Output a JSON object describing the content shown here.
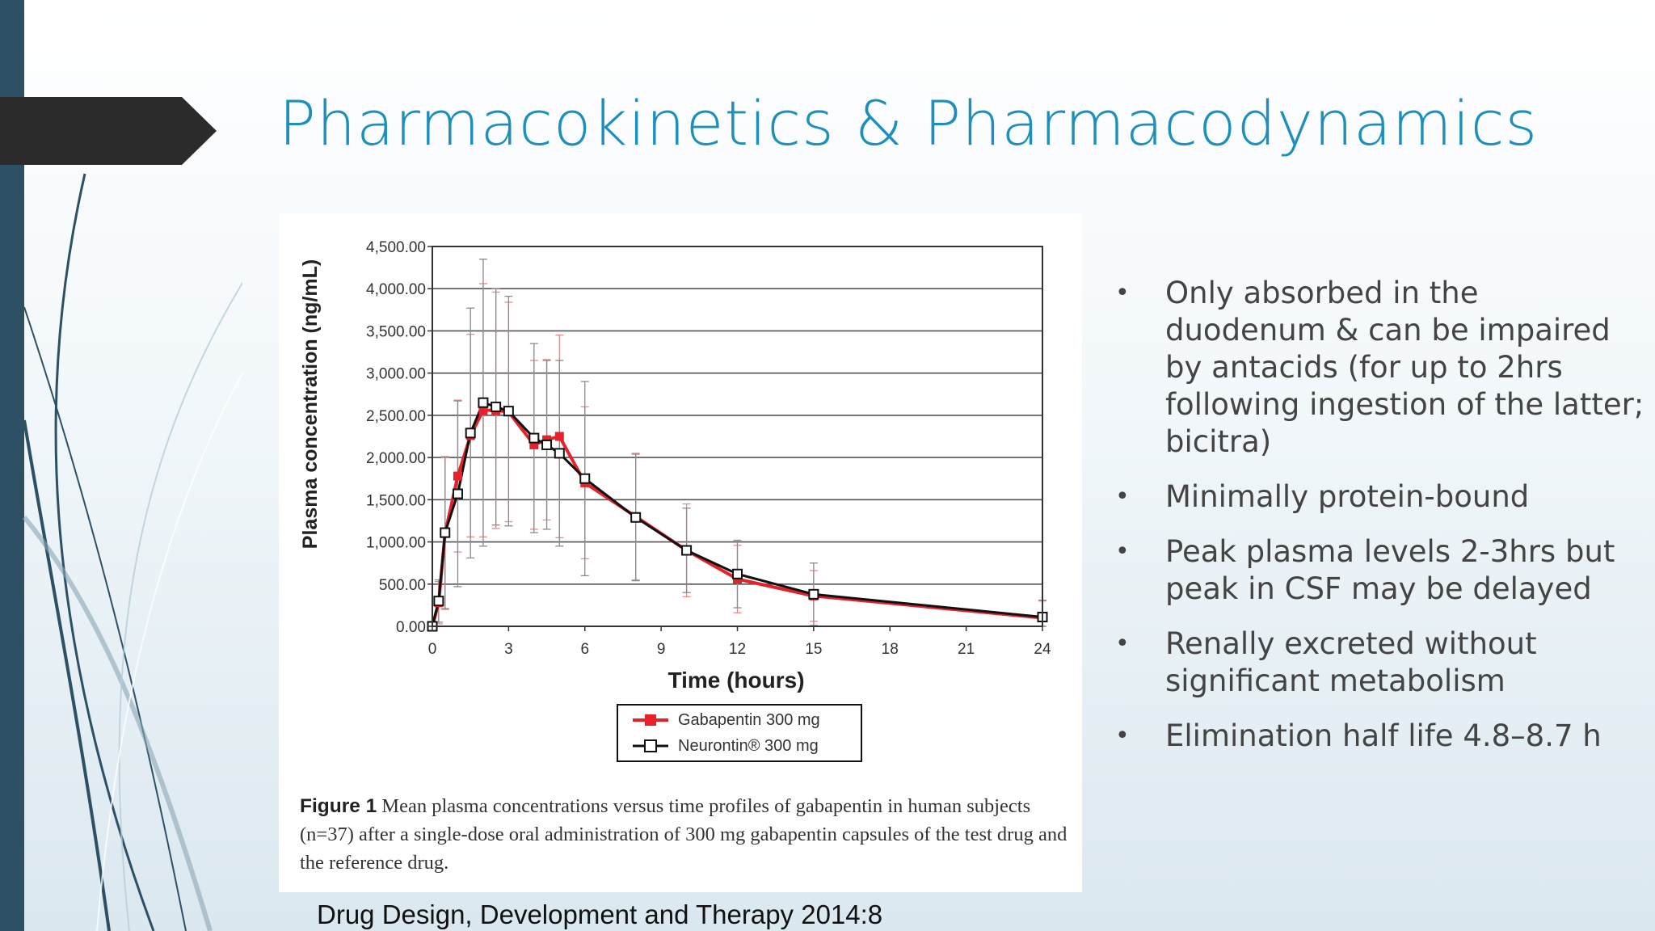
{
  "slide": {
    "title": "Pharmacokinetics & Pharmacodynamics",
    "source": "Drug Design, Development and Therapy 2014:8",
    "bullets": [
      "Only absorbed in the duodenum & can be impaired by antacids (for up to 2hrs following ingestion of the latter; bicitra)",
      "Minimally protein-bound",
      "Peak plasma levels 2-3hrs but peak in CSF may be delayed",
      "Renally excreted without significant metabolism",
      "Elimination half life 4.8–8.7 h"
    ],
    "colors": {
      "title": "#1c8fbd",
      "left_bar": "#2e5065",
      "tab": "#2b2b2b"
    }
  },
  "figure": {
    "caption_label": "Figure 1",
    "caption_text": "Mean plasma concentrations versus time profiles of gabapentin in human subjects (n=37) after a single-dose oral administration of 300 mg gabapentin capsules of the test drug and the reference drug."
  },
  "chart_data": {
    "type": "line",
    "xlabel": "Time (hours)",
    "ylabel": "Plasma concentration (ng/mL)",
    "xlim": [
      0,
      24
    ],
    "ylim": [
      0,
      4500
    ],
    "x_ticks": [
      0,
      3,
      6,
      9,
      12,
      15,
      18,
      21,
      24
    ],
    "x_tick_labels": [
      "0",
      "3",
      "6",
      "9",
      "12",
      "15",
      "18",
      "21",
      "24"
    ],
    "y_ticks": [
      0,
      500,
      1000,
      1500,
      2000,
      2500,
      3000,
      3500,
      4000,
      4500
    ],
    "y_tick_labels": [
      "0.00",
      "500.00",
      "1,000.00",
      "1,500.00",
      "2,000.00",
      "2,500.00",
      "3,000.00",
      "3,500.00",
      "4,000.00",
      "4,500.00"
    ],
    "grid": "horizontal",
    "legend_position": "bottom-center",
    "series": [
      {
        "name": "Gabapentin 300 mg",
        "color": "#e8202a",
        "marker": "filled-square",
        "x": [
          0,
          0.25,
          0.5,
          1,
          1.5,
          2,
          2.5,
          3,
          4,
          4.5,
          5,
          6,
          8,
          10,
          12,
          15,
          24
        ],
        "y": [
          0,
          280,
          1100,
          1780,
          2260,
          2560,
          2560,
          2540,
          2150,
          2210,
          2250,
          1700,
          1300,
          900,
          560,
          360,
          100
        ],
        "err": [
          0,
          250,
          900,
          900,
          1200,
          1500,
          1400,
          1300,
          1000,
          950,
          1200,
          900,
          750,
          550,
          400,
          300,
          200
        ]
      },
      {
        "name": "Neurontin® 300 mg",
        "color": "#111111",
        "marker": "open-square",
        "x": [
          0,
          0.25,
          0.5,
          1,
          1.5,
          2,
          2.5,
          3,
          4,
          4.5,
          5,
          6,
          8,
          10,
          12,
          15,
          24
        ],
        "y": [
          0,
          300,
          1110,
          1570,
          2290,
          2650,
          2600,
          2550,
          2230,
          2150,
          2050,
          1750,
          1290,
          900,
          620,
          380,
          110
        ],
        "err": [
          0,
          250,
          900,
          1100,
          1480,
          1700,
          1400,
          1360,
          1120,
          1000,
          1100,
          1150,
          750,
          500,
          400,
          370,
          200
        ]
      }
    ]
  }
}
